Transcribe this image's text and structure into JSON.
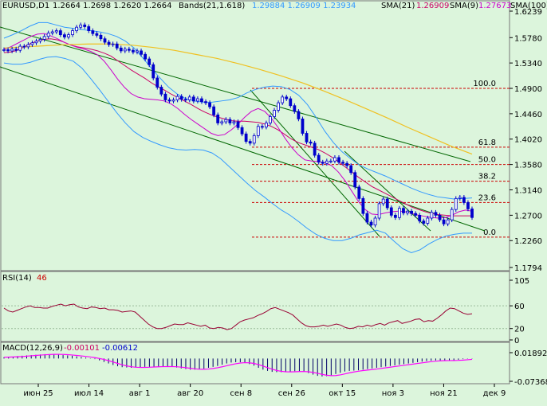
{
  "colors": {
    "background": "#dcf5dc",
    "candle": "#0000cc",
    "bands": "#3399ff",
    "sma21": "#cc0066",
    "sma9": "#cc00cc",
    "sma100": "#ffff99",
    "fib": "#cc0000",
    "channel": "#006600",
    "rsi": "#990033",
    "macd_hist": "#000066",
    "macd_signal": "#ff00ff",
    "axis_text": "#000000"
  },
  "header": {
    "symbol": "EURUSD,D1",
    "ohlc": "1.2664  1.2698  1.2620  1.2664",
    "bands_label": "Bands(21,1.618)",
    "bands_values": "1.29884  1.26909  1.23934",
    "sma21_label": "SMA(21)",
    "sma21_value": "1.26909",
    "sma9_label": "SMA(9)",
    "sma9_value": "1.27673",
    "sma100_label": "SMA(100)"
  },
  "rsi_panel": {
    "label": "RSI(14)",
    "value": "46"
  },
  "macd_panel": {
    "label": "MACD(12,26,9)",
    "value1": "-0.00101",
    "value2": "-0.00612"
  },
  "chart_data": [
    {
      "type": "line",
      "title": "EURUSD,D1",
      "xlabel": "",
      "ylabel": "",
      "x_ticks": [
        "июн 25",
        "июл 14",
        "авг 1",
        "авг 20",
        "сен 8",
        "сен 26",
        "окт 15",
        "ноя 3",
        "ноя 21",
        "дек 9"
      ],
      "y_ticks": [
        "1.6239",
        "1.5780",
        "1.5340",
        "1.4900",
        "1.4460",
        "1.4020",
        "1.3580",
        "1.3140",
        "1.2700",
        "1.2260",
        "1.1794"
      ],
      "ylim": [
        1.1794,
        1.6239
      ],
      "closes": [
        1.557,
        1.555,
        1.558,
        1.556,
        1.563,
        1.562,
        1.566,
        1.569,
        1.572,
        1.575,
        1.58,
        1.586,
        1.588,
        1.59,
        1.583,
        1.579,
        1.583,
        1.59,
        1.596,
        1.6,
        1.597,
        1.59,
        1.585,
        1.582,
        1.576,
        1.57,
        1.566,
        1.567,
        1.56,
        1.555,
        1.558,
        1.556,
        1.553,
        1.555,
        1.549,
        1.541,
        1.531,
        1.508,
        1.492,
        1.48,
        1.47,
        1.468,
        1.47,
        1.476,
        1.471,
        1.47,
        1.475,
        1.468,
        1.472,
        1.467,
        1.465,
        1.458,
        1.444,
        1.43,
        1.432,
        1.436,
        1.43,
        1.432,
        1.422,
        1.411,
        1.398,
        1.395,
        1.408,
        1.424,
        1.423,
        1.43,
        1.441,
        1.452,
        1.465,
        1.475,
        1.472,
        1.46,
        1.45,
        1.437,
        1.412,
        1.397,
        1.395,
        1.374,
        1.362,
        1.36,
        1.364,
        1.364,
        1.37,
        1.362,
        1.36,
        1.356,
        1.344,
        1.319,
        1.299,
        1.273,
        1.258,
        1.253,
        1.265,
        1.29,
        1.298,
        1.283,
        1.27,
        1.266,
        1.282,
        1.274,
        1.277,
        1.273,
        1.27,
        1.26,
        1.256,
        1.265,
        1.275,
        1.27,
        1.262,
        1.255,
        1.262,
        1.28,
        1.299,
        1.301,
        1.292,
        1.281,
        1.266
      ],
      "sma21_start": [
        1.552,
        1.553,
        1.556,
        1.562,
        1.568,
        1.572,
        1.575,
        1.576,
        1.574,
        1.57,
        1.565,
        1.562,
        1.56,
        1.558,
        1.555,
        1.551,
        1.546,
        1.538,
        1.53,
        1.522,
        1.515,
        1.508,
        1.5,
        1.493,
        1.487,
        1.48,
        1.474,
        1.468,
        1.462,
        1.455,
        1.449,
        1.444,
        1.44,
        1.437,
        1.434,
        1.433,
        1.433,
        1.432,
        1.431,
        1.428,
        1.424,
        1.418,
        1.41,
        1.402,
        1.396,
        1.392,
        1.388,
        1.384,
        1.378,
        1.371,
        1.363,
        1.354,
        1.345,
        1.336,
        1.328,
        1.32,
        1.314,
        1.308,
        1.302,
        1.296,
        1.29,
        1.284,
        1.28,
        1.276,
        1.273,
        1.271,
        1.27,
        1.269,
        1.269,
        1.269,
        1.269
      ],
      "sma9_start": [
        1.558,
        1.562,
        1.568,
        1.574,
        1.58,
        1.584,
        1.585,
        1.581,
        1.576,
        1.57,
        1.565,
        1.561,
        1.558,
        1.554,
        1.548,
        1.537,
        1.522,
        1.506,
        1.492,
        1.481,
        1.475,
        1.472,
        1.471,
        1.47,
        1.468,
        1.463,
        1.455,
        1.445,
        1.436,
        1.428,
        1.42,
        1.412,
        1.408,
        1.41,
        1.418,
        1.428,
        1.44,
        1.45,
        1.455,
        1.45,
        1.438,
        1.422,
        1.404,
        1.388,
        1.375,
        1.366,
        1.364,
        1.363,
        1.361,
        1.356,
        1.345,
        1.33,
        1.312,
        1.294,
        1.28,
        1.272,
        1.271,
        1.274,
        1.276,
        1.277,
        1.276,
        1.273,
        1.27,
        1.268,
        1.266,
        1.265,
        1.266,
        1.27,
        1.276,
        1.279,
        1.277
      ],
      "sma100": [
        1.56,
        1.562,
        1.564,
        1.566,
        1.567,
        1.567,
        1.565,
        1.561,
        1.556,
        1.549,
        1.542,
        1.533,
        1.523,
        1.512,
        1.5,
        1.486,
        1.471,
        1.455,
        1.439,
        1.422,
        1.406,
        1.39,
        1.376
      ],
      "bands_upper": [
        1.577,
        1.583,
        1.59,
        1.598,
        1.604,
        1.604,
        1.6,
        1.596,
        1.594,
        1.592,
        1.59,
        1.588,
        1.585,
        1.58,
        1.572,
        1.56,
        1.543,
        1.525,
        1.508,
        1.492,
        1.48,
        1.472,
        1.468,
        1.466,
        1.466,
        1.468,
        1.47,
        1.474,
        1.482,
        1.488,
        1.492,
        1.494,
        1.493,
        1.488,
        1.478,
        1.462,
        1.44,
        1.416,
        1.396,
        1.38,
        1.368,
        1.357,
        1.35,
        1.344,
        1.338,
        1.331,
        1.324,
        1.317,
        1.311,
        1.306,
        1.302,
        1.3,
        1.298,
        1.299,
        1.3
      ],
      "bands_lower": [
        1.534,
        1.532,
        1.532,
        1.535,
        1.54,
        1.544,
        1.545,
        1.542,
        1.537,
        1.525,
        1.507,
        1.488,
        1.468,
        1.448,
        1.43,
        1.415,
        1.405,
        1.398,
        1.392,
        1.387,
        1.384,
        1.383,
        1.384,
        1.383,
        1.378,
        1.368,
        1.354,
        1.34,
        1.326,
        1.313,
        1.302,
        1.29,
        1.279,
        1.27,
        1.259,
        1.247,
        1.237,
        1.23,
        1.226,
        1.226,
        1.23,
        1.236,
        1.24,
        1.244,
        1.239,
        1.225,
        1.212,
        1.205,
        1.21,
        1.22,
        1.228,
        1.234,
        1.237,
        1.239,
        1.239
      ],
      "fib_levels": [
        {
          "label": "100.0",
          "value": 1.49
        },
        {
          "label": "61.8",
          "value": 1.388
        },
        {
          "label": "50.0",
          "value": 1.358
        },
        {
          "label": "38.2",
          "value": 1.329
        },
        {
          "label": "23.6",
          "value": 1.292
        },
        {
          "label": "0.0",
          "value": 1.232
        }
      ]
    },
    {
      "type": "line",
      "title": "RSI(14)",
      "ylim": [
        0,
        105
      ],
      "y_ticks": [
        "105",
        "60",
        "20",
        "0"
      ],
      "values": [
        56,
        51,
        49,
        52,
        55,
        58,
        60,
        57,
        57,
        56,
        56,
        59,
        61,
        63,
        60,
        62,
        63,
        58,
        56,
        55,
        58,
        57,
        55,
        56,
        53,
        53,
        52,
        49,
        50,
        51,
        49,
        42,
        35,
        28,
        23,
        20,
        20,
        22,
        25,
        28,
        27,
        27,
        30,
        28,
        26,
        24,
        26,
        21,
        20,
        22,
        21,
        18,
        20,
        26,
        32,
        35,
        37,
        39,
        43,
        46,
        50,
        55,
        57,
        54,
        51,
        48,
        44,
        37,
        30,
        25,
        23,
        23,
        24,
        26,
        24,
        26,
        28,
        26,
        22,
        20,
        21,
        24,
        23,
        26,
        24,
        27,
        29,
        26,
        30,
        32,
        34,
        29,
        31,
        33,
        36,
        37,
        32,
        34,
        33,
        38,
        44,
        51,
        56,
        55,
        51,
        47,
        45,
        46
      ]
    },
    {
      "type": "bar",
      "title": "MACD(12,26,9)",
      "ylim": [
        -0.07368,
        0.01892
      ],
      "y_ticks": [
        "0.01892",
        "-0.07368"
      ],
      "values": [
        0.004,
        0.005,
        0.006,
        0.008,
        0.009,
        0.01,
        0.011,
        0.012,
        0.013,
        0.014,
        0.014,
        0.014,
        0.013,
        0.011,
        0.01,
        0.009,
        0.007,
        0.005,
        0.003,
        0.001,
        -0.002,
        -0.006,
        -0.011,
        -0.016,
        -0.021,
        -0.025,
        -0.028,
        -0.029,
        -0.03,
        -0.029,
        -0.028,
        -0.027,
        -0.027,
        -0.026,
        -0.026,
        -0.025,
        -0.026,
        -0.027,
        -0.029,
        -0.032,
        -0.034,
        -0.036,
        -0.036,
        -0.035,
        -0.033,
        -0.03,
        -0.027,
        -0.024,
        -0.02,
        -0.016,
        -0.013,
        -0.012,
        -0.012,
        -0.014,
        -0.018,
        -0.023,
        -0.03,
        -0.036,
        -0.04,
        -0.043,
        -0.044,
        -0.044,
        -0.043,
        -0.042,
        -0.041,
        -0.041,
        -0.043,
        -0.047,
        -0.052,
        -0.056,
        -0.058,
        -0.057,
        -0.054,
        -0.05,
        -0.046,
        -0.042,
        -0.04,
        -0.039,
        -0.038,
        -0.036,
        -0.034,
        -0.032,
        -0.03,
        -0.028,
        -0.026,
        -0.024,
        -0.022,
        -0.02,
        -0.018,
        -0.016,
        -0.014,
        -0.012,
        -0.01,
        -0.008,
        -0.007,
        -0.006,
        -0.006,
        -0.007,
        -0.007,
        -0.006,
        -0.004,
        -0.002,
        -0.001,
        -0.001
      ]
    }
  ]
}
